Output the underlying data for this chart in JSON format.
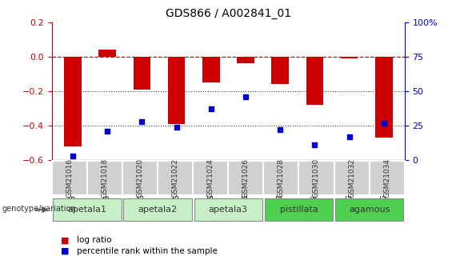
{
  "title": "GDS866 / A002841_01",
  "samples": [
    "GSM21016",
    "GSM21018",
    "GSM21020",
    "GSM21022",
    "GSM21024",
    "GSM21026",
    "GSM21028",
    "GSM21030",
    "GSM21032",
    "GSM21034"
  ],
  "log_ratio": [
    -0.52,
    0.04,
    -0.19,
    -0.39,
    -0.15,
    -0.04,
    -0.16,
    -0.28,
    -0.01,
    -0.47
  ],
  "percentile_rank": [
    3,
    21,
    28,
    24,
    37,
    46,
    22,
    11,
    17,
    27
  ],
  "groups": [
    {
      "label": "apetala1",
      "samples": [
        0,
        1
      ],
      "color": "#c8f0c8"
    },
    {
      "label": "apetala2",
      "samples": [
        2,
        3
      ],
      "color": "#c8f0c8"
    },
    {
      "label": "apetala3",
      "samples": [
        4,
        5
      ],
      "color": "#c8f0c8"
    },
    {
      "label": "pistillata",
      "samples": [
        6,
        7
      ],
      "color": "#50d050"
    },
    {
      "label": "agamous",
      "samples": [
        8,
        9
      ],
      "color": "#50d050"
    }
  ],
  "ylim_left": [
    -0.6,
    0.2
  ],
  "ylim_right": [
    0,
    100
  ],
  "yticks_left": [
    -0.6,
    -0.4,
    -0.2,
    0.0,
    0.2
  ],
  "yticks_right": [
    0,
    25,
    50,
    75,
    100
  ],
  "ytick_right_labels": [
    "0",
    "25",
    "50",
    "75",
    "100%"
  ],
  "bar_color": "#cc0000",
  "dot_color": "#0000cc",
  "hline_color": "#cc0000",
  "dotted_line_color": "#444444",
  "sample_box_color": "#d0d0d0",
  "legend_bar_label": "log ratio",
  "legend_dot_label": "percentile rank within the sample",
  "genotype_label": "genotype/variation"
}
